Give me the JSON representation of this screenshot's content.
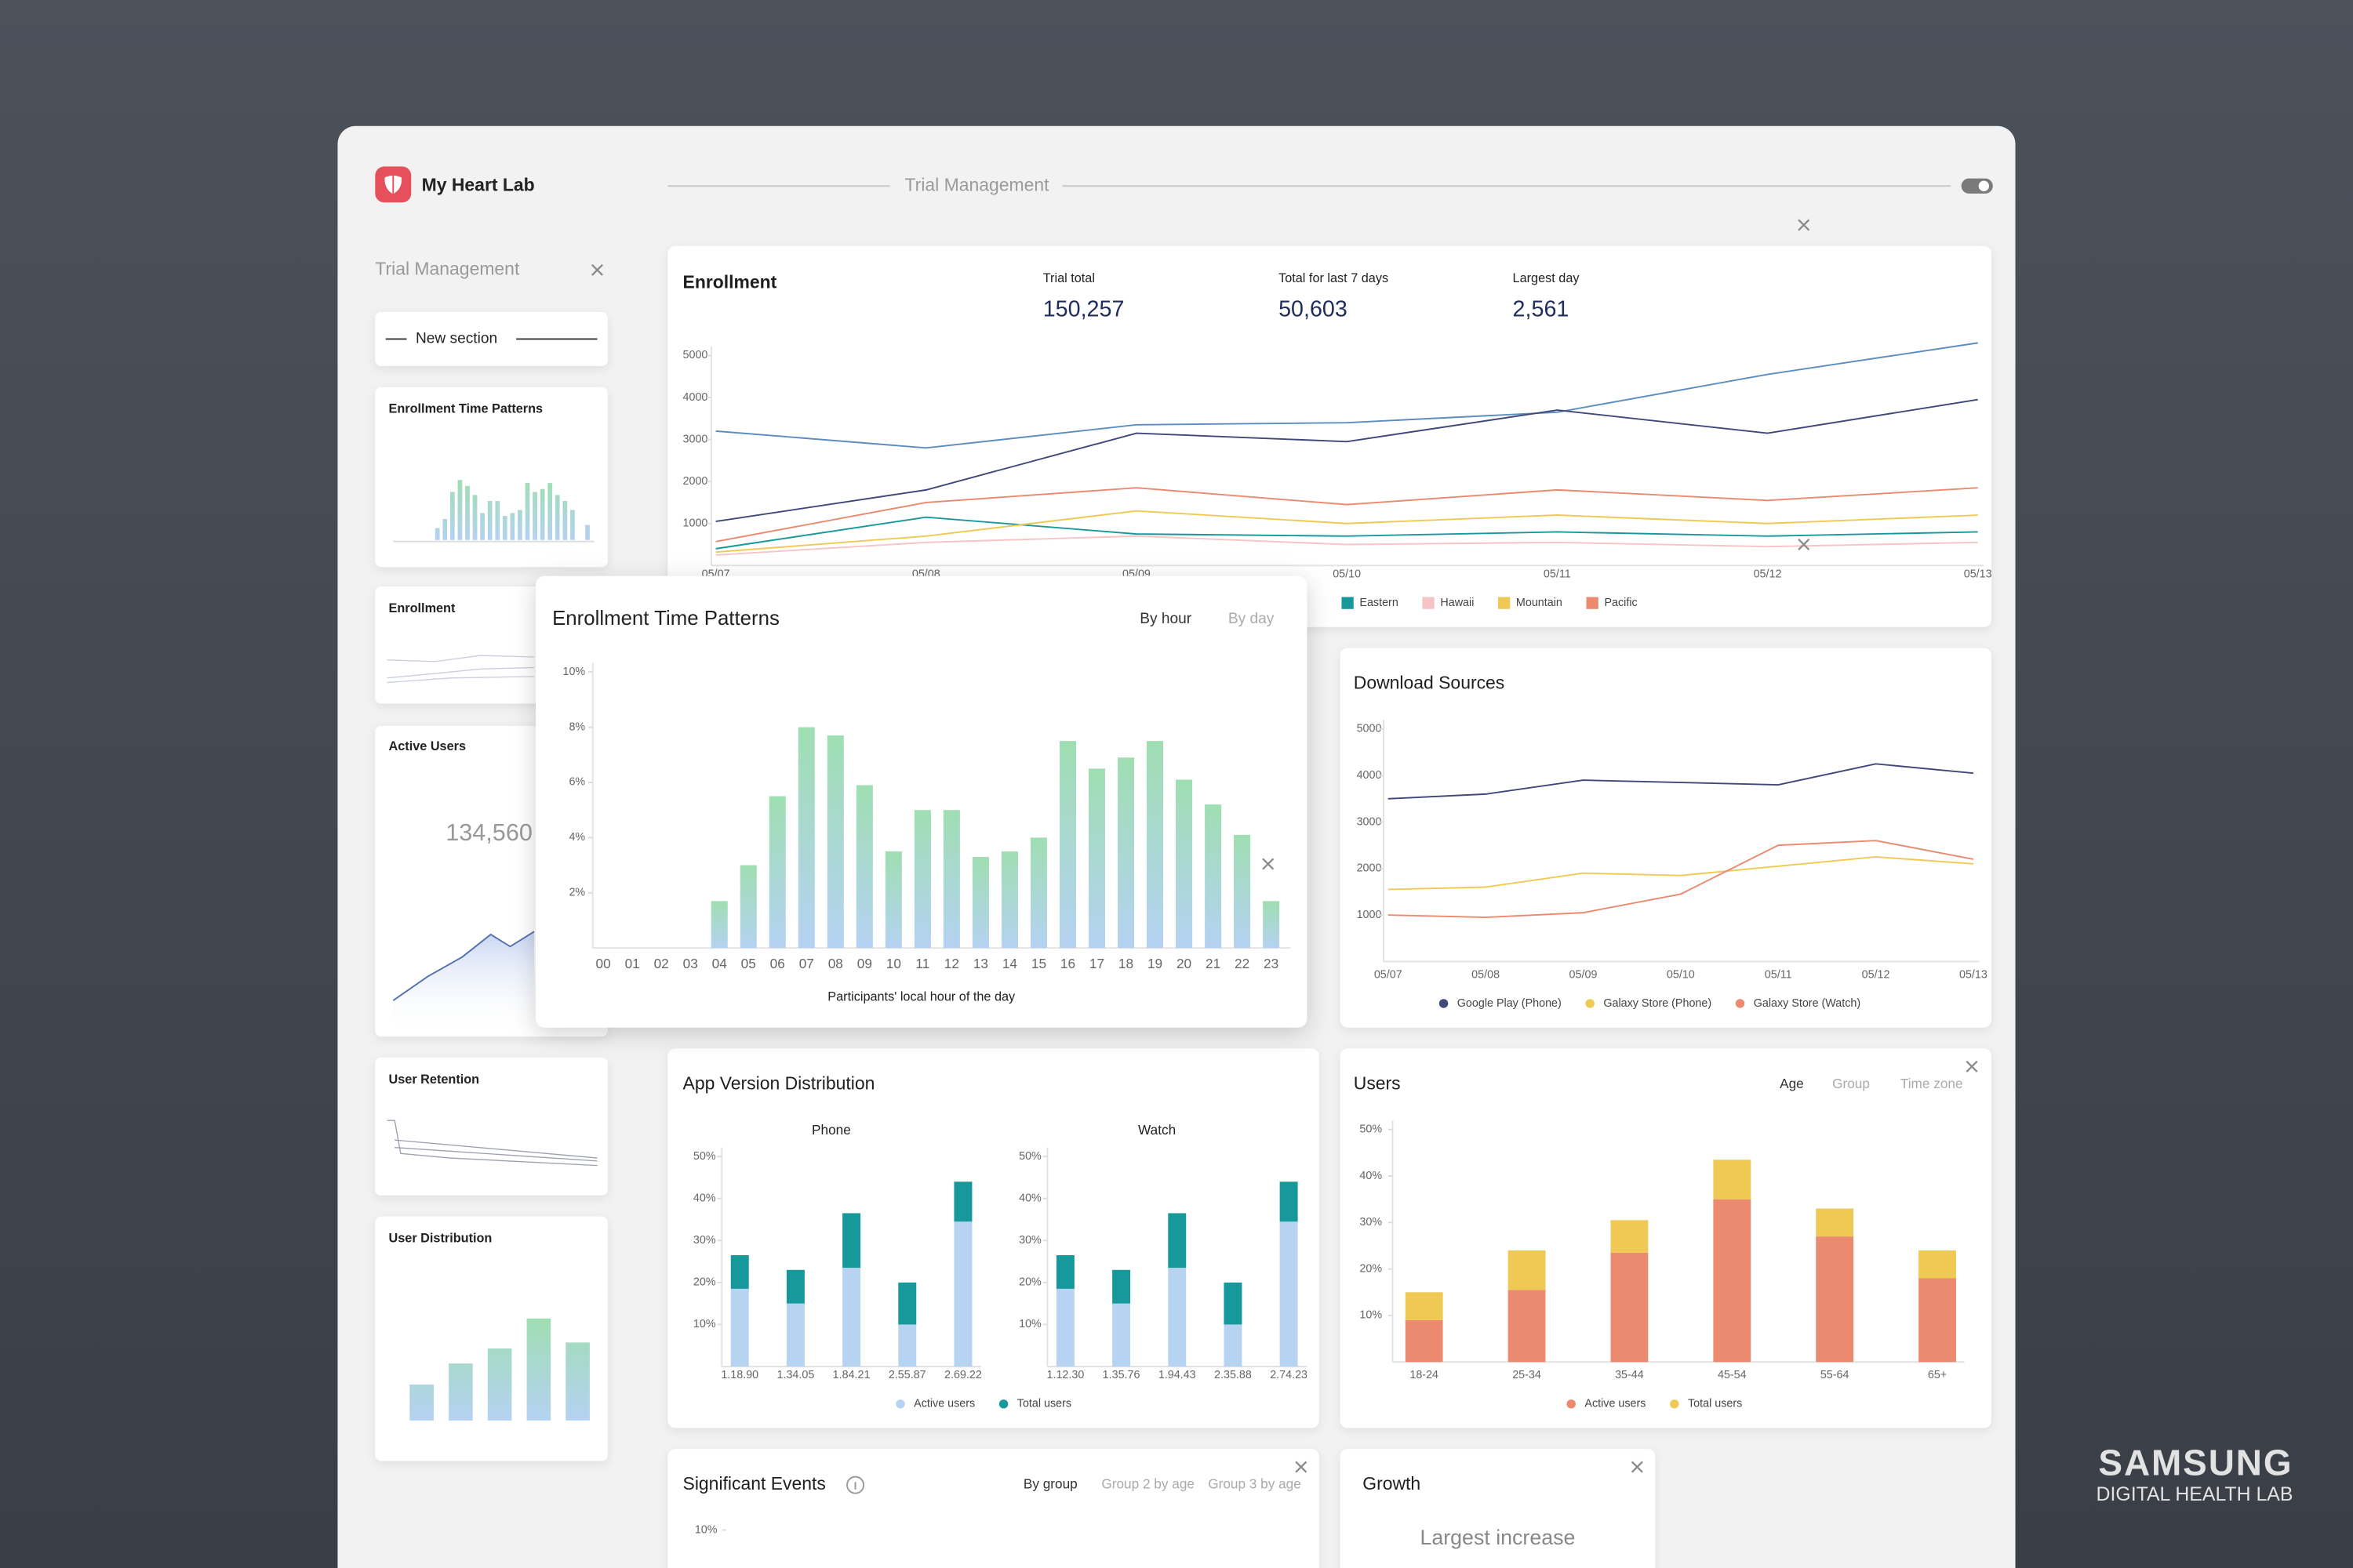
{
  "header": {
    "app_name": "My Heart Lab",
    "title": "Trial Management"
  },
  "sidebar": {
    "title": "Trial Management",
    "section": "New section",
    "thumbnails": [
      "Enrollment Time Patterns",
      "Enrollment",
      "Active Users",
      "User Retention",
      "User Distribution"
    ],
    "active_users_value": "134,560"
  },
  "enrollment": {
    "title": "Enrollment",
    "stats": [
      {
        "label": "Trial total",
        "value": "150,257"
      },
      {
        "label": "Total for last 7 days",
        "value": "50,603"
      },
      {
        "label": "Largest day",
        "value": "2,561"
      }
    ],
    "chart": {
      "type": "line",
      "categories": [
        "05/07",
        "05/08",
        "05/09",
        "05/10",
        "05/11",
        "05/12",
        "05/13"
      ],
      "ylim": [
        0,
        5000
      ],
      "yticks": [
        1000,
        2000,
        3000,
        4000,
        5000
      ],
      "series": [
        {
          "color": "#5b8dbf",
          "values": [
            3200,
            2800,
            3350,
            3400,
            3650,
            4550,
            5300
          ]
        },
        {
          "color": "#3f4878",
          "values": [
            1050,
            1800,
            3150,
            2950,
            3700,
            3150,
            3950
          ]
        },
        {
          "name": "Eastern",
          "color": "#17999c",
          "values": [
            400,
            1150,
            750,
            700,
            800,
            700,
            800
          ]
        },
        {
          "name": "Hawaii",
          "color": "#f6c4c4",
          "values": [
            250,
            550,
            700,
            500,
            550,
            450,
            550
          ]
        },
        {
          "name": "Mountain",
          "color": "#f0c955",
          "values": [
            320,
            700,
            1300,
            1000,
            1200,
            1000,
            1200
          ]
        },
        {
          "name": "Pacific",
          "color": "#ec8a70",
          "values": [
            570,
            1500,
            1850,
            1450,
            1800,
            1550,
            1850
          ]
        }
      ]
    }
  },
  "enrollment_time_patterns": {
    "title": "Enrollment Time Patterns",
    "tabs": [
      "By hour",
      "By day"
    ],
    "chart": {
      "type": "bar",
      "xlabel": "Participants' local hour of the day",
      "categories": [
        "00",
        "01",
        "02",
        "03",
        "04",
        "05",
        "06",
        "07",
        "08",
        "09",
        "10",
        "11",
        "12",
        "13",
        "14",
        "15",
        "16",
        "17",
        "18",
        "19",
        "20",
        "21",
        "22",
        "23"
      ],
      "values": [
        0,
        0,
        0,
        0,
        1.7,
        3.0,
        5.5,
        8.0,
        7.7,
        5.9,
        3.5,
        5.0,
        5.0,
        3.3,
        3.5,
        4.0,
        7.5,
        6.5,
        6.9,
        7.5,
        6.1,
        5.2,
        4.1,
        1.7
      ],
      "ylim": [
        0,
        10
      ],
      "yticks": [
        {
          "value": 2,
          "label": "2%"
        },
        {
          "value": 4,
          "label": "4%"
        },
        {
          "value": 6,
          "label": "6%"
        },
        {
          "value": 8,
          "label": "8%"
        },
        {
          "value": 10,
          "label": "10%"
        }
      ],
      "gradient": {
        "top": "#9fdeb2",
        "bottom": "#b5d2f2"
      }
    }
  },
  "download_sources": {
    "title": "Download Sources",
    "chart": {
      "type": "line",
      "categories": [
        "05/07",
        "05/08",
        "05/09",
        "05/10",
        "05/11",
        "05/12",
        "05/13"
      ],
      "ylim": [
        0,
        5000
      ],
      "yticks": [
        1000,
        2000,
        3000,
        4000,
        5000
      ],
      "series": [
        {
          "name": "Google Play (Phone)",
          "color": "#3f4878",
          "values": [
            3500,
            3600,
            3900,
            3850,
            3800,
            4250,
            4050
          ]
        },
        {
          "name": "Galaxy Store (Phone)",
          "color": "#f0c955",
          "values": [
            1550,
            1600,
            1900,
            1850,
            2050,
            2250,
            2100
          ]
        },
        {
          "name": "Galaxy Store (Watch)",
          "color": "#ec8a70",
          "values": [
            1000,
            950,
            1050,
            1450,
            2500,
            2600,
            2200
          ]
        }
      ]
    }
  },
  "app_version_distribution": {
    "title": "App Version Distribution",
    "legend": [
      {
        "name": "Active users",
        "color": "#b6d3f2"
      },
      {
        "name": "Total users",
        "color": "#17999c"
      }
    ],
    "charts": [
      {
        "type": "bar",
        "subtitle": "Phone",
        "categories": [
          "1.18.90",
          "1.34.05",
          "1.84.21",
          "2.55.87",
          "2.69.22"
        ],
        "ylim": [
          0,
          50
        ],
        "yticks": [
          {
            "value": 10,
            "label": "10%"
          },
          {
            "value": 20,
            "label": "20%"
          },
          {
            "value": 30,
            "label": "30%"
          },
          {
            "value": 40,
            "label": "40%"
          },
          {
            "value": 50,
            "label": "50%"
          }
        ],
        "series": [
          {
            "color": "#b6d3f2",
            "values": [
              18.5,
              15,
              23.5,
              10,
              34.5
            ]
          },
          {
            "color": "#17999c",
            "values": [
              8,
              8,
              13,
              10,
              9.5
            ]
          }
        ]
      },
      {
        "type": "bar",
        "subtitle": "Watch",
        "categories": [
          "1.12.30",
          "1.35.76",
          "1.94.43",
          "2.35.88",
          "2.74.23"
        ],
        "ylim": [
          0,
          50
        ],
        "yticks": [
          {
            "value": 10,
            "label": "10%"
          },
          {
            "value": 20,
            "label": "20%"
          },
          {
            "value": 30,
            "label": "30%"
          },
          {
            "value": 40,
            "label": "40%"
          },
          {
            "value": 50,
            "label": "50%"
          }
        ],
        "series": [
          {
            "color": "#b6d3f2",
            "values": [
              18.5,
              15,
              23.5,
              10,
              34.5
            ]
          },
          {
            "color": "#17999c",
            "values": [
              8,
              8,
              13,
              10,
              9.5
            ]
          }
        ]
      }
    ]
  },
  "users": {
    "title": "Users",
    "tabs": [
      "Age",
      "Group",
      "Time zone"
    ],
    "chart": {
      "type": "bar",
      "categories": [
        "18-24",
        "25-34",
        "35-44",
        "45-54",
        "55-64",
        "65+"
      ],
      "ylim": [
        0,
        50
      ],
      "yticks": [
        {
          "value": 10,
          "label": "10%"
        },
        {
          "value": 20,
          "label": "20%"
        },
        {
          "value": 30,
          "label": "30%"
        },
        {
          "value": 40,
          "label": "40%"
        },
        {
          "value": 50,
          "label": "50%"
        }
      ],
      "series": [
        {
          "name": "Active users",
          "color": "#ec8a70",
          "values": [
            9,
            15.5,
            23.5,
            35,
            27,
            18
          ]
        },
        {
          "name": "Total users",
          "color": "#f0c955",
          "values": [
            6,
            8.5,
            7,
            8.5,
            6,
            6
          ]
        }
      ]
    }
  },
  "significant_events": {
    "title": "Significant Events",
    "tabs": [
      "By group",
      "Group 2 by age",
      "Group 3 by age"
    ],
    "yticks": [
      {
        "value": 10,
        "label": "10%"
      }
    ]
  },
  "growth": {
    "title": "Growth",
    "label": "Largest increase"
  },
  "brand": {
    "name": "SAMSUNG",
    "subtitle": "DIGITAL HEALTH LAB"
  }
}
